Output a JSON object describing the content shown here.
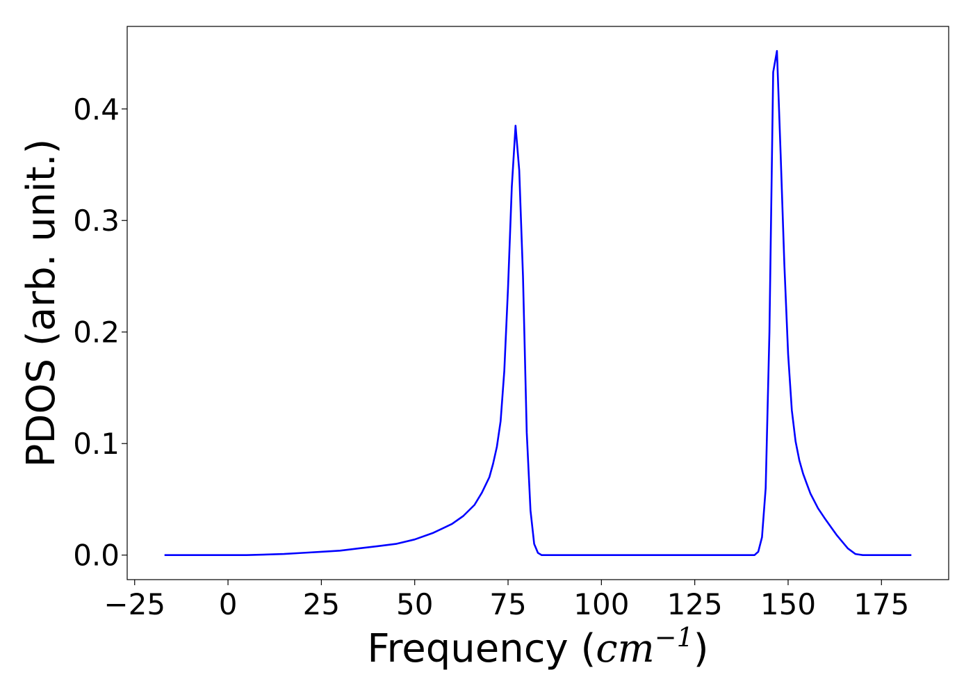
{
  "chart_data": {
    "type": "line",
    "title": "",
    "xlabel_prefix": "Frequency (",
    "xlabel_math": "cm",
    "xlabel_exponent": "−1",
    "xlabel_suffix": ")",
    "ylabel": "PDOS (arb. unit.)",
    "xlim": [
      -27,
      193
    ],
    "ylim": [
      -0.022,
      0.474
    ],
    "xticks": [
      -25,
      0,
      25,
      50,
      75,
      100,
      125,
      150,
      175
    ],
    "xtick_labels": [
      "−25",
      "0",
      "25",
      "50",
      "75",
      "100",
      "125",
      "150",
      "175"
    ],
    "yticks": [
      0.0,
      0.1,
      0.2,
      0.3,
      0.4
    ],
    "ytick_labels": [
      "0.0",
      "0.1",
      "0.2",
      "0.3",
      "0.4"
    ],
    "grid": false,
    "series": [
      {
        "color": "#0000ff",
        "x": [
          -17,
          -5,
          5,
          15,
          20,
          25,
          30,
          35,
          40,
          45,
          50,
          55,
          60,
          63,
          66,
          68,
          70,
          71,
          72,
          73,
          74,
          75,
          76,
          77,
          78,
          79,
          80,
          81,
          82,
          83,
          84,
          90,
          100,
          120,
          140,
          141,
          142,
          143,
          144,
          145,
          146,
          147,
          148,
          149,
          150,
          151,
          152,
          153,
          154,
          155,
          156,
          158,
          160,
          163,
          166,
          168,
          170,
          175,
          183
        ],
        "y": [
          0.0,
          0.0,
          0.0,
          0.001,
          0.002,
          0.003,
          0.004,
          0.006,
          0.008,
          0.01,
          0.014,
          0.02,
          0.028,
          0.035,
          0.045,
          0.056,
          0.07,
          0.082,
          0.097,
          0.12,
          0.165,
          0.24,
          0.33,
          0.385,
          0.345,
          0.25,
          0.11,
          0.04,
          0.01,
          0.002,
          0.0,
          0.0,
          0.0,
          0.0,
          0.0,
          0.0,
          0.003,
          0.016,
          0.06,
          0.2,
          0.433,
          0.452,
          0.36,
          0.26,
          0.18,
          0.13,
          0.102,
          0.085,
          0.073,
          0.064,
          0.055,
          0.042,
          0.032,
          0.018,
          0.006,
          0.001,
          0.0,
          0.0,
          0.0
        ]
      }
    ]
  }
}
